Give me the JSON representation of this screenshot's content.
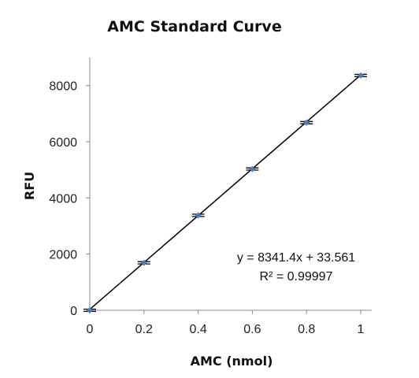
{
  "chart_data": {
    "type": "scatter",
    "title": "AMC Standard Curve",
    "xlabel": "AMC (nmol)",
    "ylabel": "RFU",
    "xlim": [
      0,
      1
    ],
    "ylim": [
      0,
      9000
    ],
    "x_ticks": [
      "0",
      "0.2",
      "0.4",
      "0.6",
      "0.8",
      "1"
    ],
    "y_ticks": [
      "0",
      "2000",
      "4000",
      "6000",
      "8000"
    ],
    "grid": false,
    "legend": "none",
    "series": [
      {
        "x": [
          0,
          0.2,
          0.4,
          0.6,
          0.8,
          1.0
        ],
        "y": [
          0,
          1690,
          3380,
          5030,
          6680,
          8360
        ],
        "error": [
          40,
          40,
          40,
          40,
          40,
          40
        ],
        "marker_color": "#4a7ebb",
        "errorbar_color": "#000000"
      }
    ],
    "trendline": {
      "type": "linear",
      "slope": 8341.4,
      "intercept": 33.561,
      "color": "#000000",
      "equation": "y = 8341.4x + 33.561",
      "r_squared": "R² = 0.99997"
    }
  }
}
